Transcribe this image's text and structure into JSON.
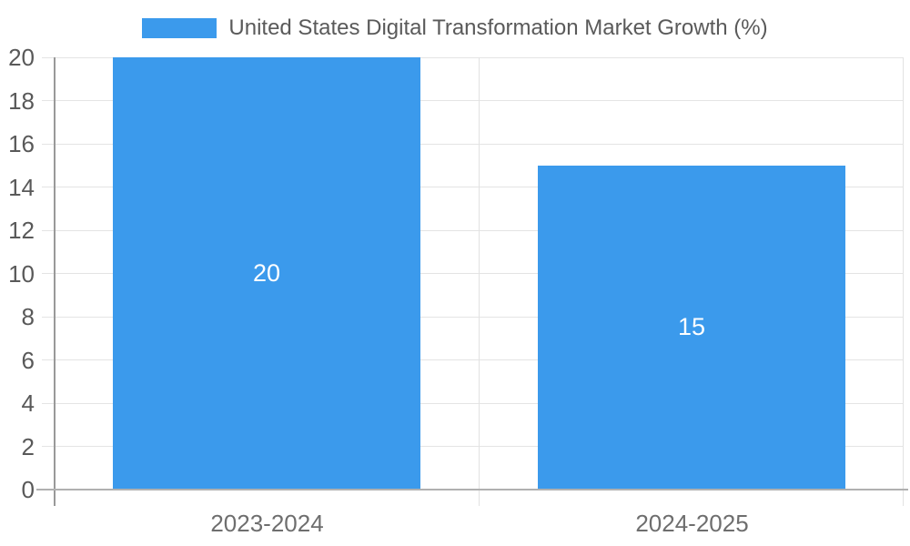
{
  "chart_data": {
    "type": "bar",
    "title": "United States Digital Transformation Market Growth (%)",
    "legend": [
      "United States Digital Transformation Market Growth (%)"
    ],
    "legend_position": "top-center",
    "categories": [
      "2023-2024",
      "2024-2025"
    ],
    "series": [
      {
        "name": "United States Digital Transformation Market Growth (%)",
        "values": [
          20,
          15
        ],
        "color": "#3B9AEC"
      }
    ],
    "data_labels": {
      "show": true,
      "values": [
        "20",
        "15"
      ],
      "color": "#FFFFFF"
    },
    "xlabel": "",
    "ylabel": "",
    "yaxis": {
      "min": 0,
      "max": 20,
      "tick_step": 2,
      "ticks": [
        0,
        2,
        4,
        6,
        8,
        10,
        12,
        14,
        16,
        18,
        20
      ]
    },
    "grid": {
      "horizontal": true,
      "category_dividers": true
    },
    "colors": {
      "bar": "#3B9AEC",
      "gridline": "#E4E4E4",
      "baseline": "#B0B0B0",
      "axis_line": "#999999",
      "y_tick_label": "#595959",
      "x_tick_label": "#6E6E6E",
      "legend_text": "#5A5A5A",
      "data_label": "#FFFFFF",
      "background": "#FFFFFF"
    }
  }
}
